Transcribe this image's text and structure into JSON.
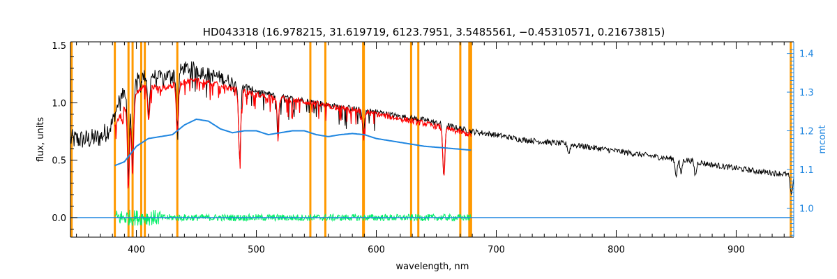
{
  "chart_data": {
    "type": "line",
    "title": "HD043318    (16.978215, 31.619719, 6123.7951, 3.5485561, −0.45310571, 0.21673815)",
    "xlabel": "wavelength, nm",
    "ylabel_left": "flux, units",
    "ylabel_right": "mcont",
    "xlim": [
      345,
      948
    ],
    "ylim_left": [
      -0.17,
      1.53
    ],
    "ylim_right": [
      0.925,
      1.43
    ],
    "x_ticks": [
      400,
      500,
      600,
      700,
      800,
      900
    ],
    "y_ticks_left": [
      "0.0",
      "0.5",
      "1.0",
      "1.5"
    ],
    "y_ticks_right": [
      "1.0",
      "1.1",
      "1.2",
      "1.3",
      "1.4"
    ],
    "colors": {
      "observed": "#000000",
      "model": "#ff0000",
      "residual": "#00ee66",
      "continuum": "#1f86e0",
      "lines": "#ff9900",
      "axis": "#000000",
      "right_axis": "#1f86e0"
    },
    "vertical_lines_nm": [
      346,
      382,
      393.4,
      396.8,
      404,
      407,
      434.1,
      545,
      557.5,
      589.0,
      589.6,
      629,
      635,
      670,
      677.5,
      679,
      945.5
    ],
    "series": [
      {
        "name": "",
        "style": "black-noisy",
        "x": [
          345,
          350,
          360,
          370,
          375,
          380,
          385,
          390,
          395,
          400,
          410,
          420,
          430,
          440,
          450,
          460,
          470,
          480,
          490,
          500,
          520,
          540,
          560,
          580,
          600,
          620,
          640,
          660,
          680,
          700,
          720,
          740,
          760,
          780,
          800,
          820,
          840,
          860,
          880,
          900,
          920,
          940,
          948
        ],
        "y": [
          0.68,
          0.68,
          0.68,
          0.7,
          0.75,
          0.82,
          1.0,
          1.1,
          1.15,
          1.2,
          1.25,
          1.22,
          1.25,
          1.3,
          1.3,
          1.25,
          1.22,
          1.18,
          1.15,
          1.1,
          1.05,
          1.02,
          0.98,
          0.95,
          0.92,
          0.88,
          0.85,
          0.8,
          0.75,
          0.72,
          0.68,
          0.66,
          0.64,
          0.61,
          0.58,
          0.55,
          0.52,
          0.5,
          0.46,
          0.43,
          0.4,
          0.38,
          0.36
        ]
      },
      {
        "name": "",
        "style": "red-model",
        "x": [
          382,
          390,
          400,
          410,
          420,
          430,
          440,
          450,
          460,
          470,
          480,
          490,
          500,
          520,
          540,
          560,
          580,
          600,
          620,
          640,
          660,
          679
        ],
        "y": [
          0.8,
          0.95,
          1.1,
          1.15,
          1.12,
          1.15,
          1.18,
          1.2,
          1.18,
          1.15,
          1.12,
          1.1,
          1.07,
          1.04,
          1.01,
          0.97,
          0.94,
          0.9,
          0.86,
          0.82,
          0.77,
          0.72
        ]
      },
      {
        "name": "",
        "style": "blue-continuum",
        "axis": "right",
        "x": [
          382,
          390,
          400,
          410,
          420,
          430,
          440,
          450,
          460,
          470,
          480,
          490,
          500,
          510,
          520,
          530,
          540,
          550,
          560,
          570,
          580,
          590,
          600,
          620,
          640,
          660,
          679
        ],
        "y": [
          1.11,
          1.12,
          1.16,
          1.18,
          1.185,
          1.19,
          1.215,
          1.23,
          1.225,
          1.205,
          1.195,
          1.2,
          1.2,
          1.19,
          1.195,
          1.2,
          1.2,
          1.19,
          1.185,
          1.19,
          1.193,
          1.19,
          1.18,
          1.17,
          1.16,
          1.155,
          1.15
        ]
      },
      {
        "name": "",
        "style": "green-residual",
        "x": [
          382,
          679
        ],
        "y": [
          0.0,
          0.0
        ]
      },
      {
        "name": "",
        "style": "blue-zero",
        "x": [
          345,
          948
        ],
        "y": [
          0.0,
          0.0
        ]
      }
    ],
    "absorption_lines": [
      {
        "x": 393.4,
        "depth": 0.75
      },
      {
        "x": 396.8,
        "depth": 0.75
      },
      {
        "x": 410.2,
        "depth": 0.35
      },
      {
        "x": 434.1,
        "depth": 0.45
      },
      {
        "x": 486.1,
        "depth": 0.65
      },
      {
        "x": 518,
        "depth": 0.25
      },
      {
        "x": 589.3,
        "depth": 0.2
      },
      {
        "x": 656.3,
        "depth": 0.45
      },
      {
        "x": 760.5,
        "depth": 0.08
      },
      {
        "x": 850,
        "depth": 0.14
      },
      {
        "x": 854,
        "depth": 0.12
      },
      {
        "x": 866,
        "depth": 0.12
      },
      {
        "x": 946,
        "depth": 0.18
      }
    ]
  }
}
